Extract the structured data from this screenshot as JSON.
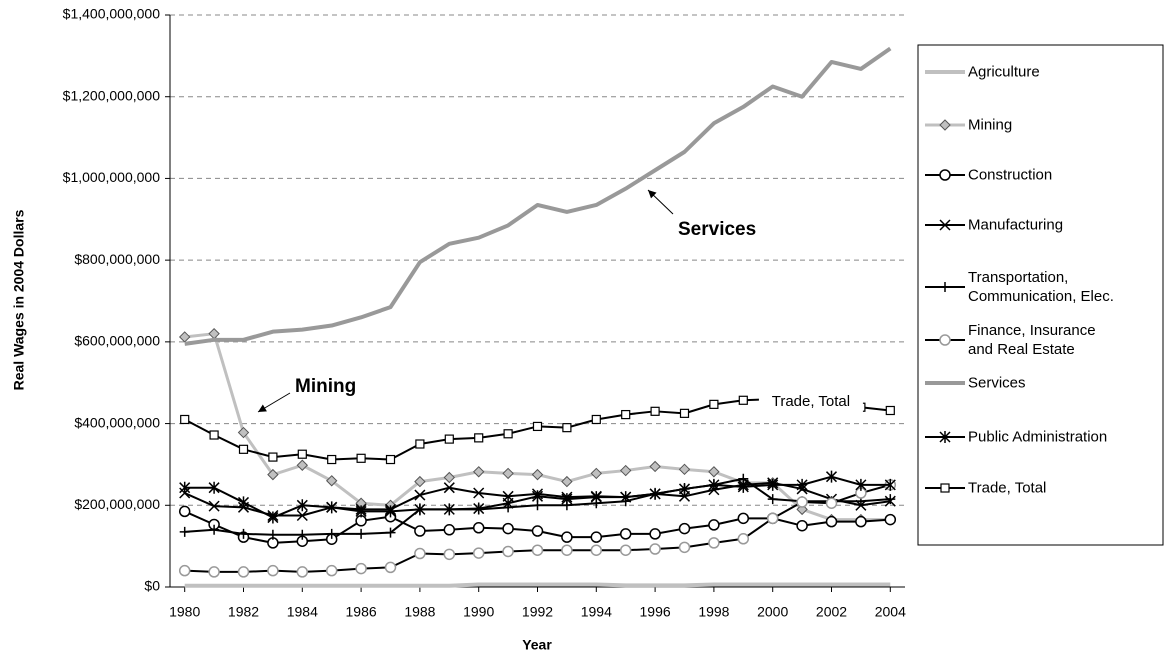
{
  "chart_data": {
    "type": "line",
    "y_label": "Real Wages in 2004 Dollars",
    "x_label": "Year",
    "x": [
      1980,
      1981,
      1982,
      1983,
      1984,
      1985,
      1986,
      1987,
      1988,
      1989,
      1990,
      1991,
      1992,
      1993,
      1994,
      1995,
      1996,
      1997,
      1998,
      1999,
      2000,
      2001,
      2002,
      2003,
      2004
    ],
    "xlim": [
      1979.5,
      2004.5
    ],
    "xticks": [
      1980,
      1982,
      1984,
      1986,
      1988,
      1990,
      1992,
      1994,
      1996,
      1998,
      2000,
      2002,
      2004
    ],
    "ylim": [
      0,
      1400000000
    ],
    "yticks": [
      {
        "value": 0,
        "label": "$0"
      },
      {
        "value": 200000000,
        "label": "$200,000,000"
      },
      {
        "value": 400000000,
        "label": "$400,000,000"
      },
      {
        "value": 600000000,
        "label": "$600,000,000"
      },
      {
        "value": 800000000,
        "label": "$800,000,000"
      },
      {
        "value": 1000000000,
        "label": "$1,000,000,000"
      },
      {
        "value": 1200000000,
        "label": "$1,200,000,000"
      },
      {
        "value": 1400000000,
        "label": "$1,400,000,000"
      }
    ],
    "grid": true,
    "legend": "right",
    "annotations": [
      "Mining",
      "Services"
    ],
    "series": [
      {
        "name": "Agriculture",
        "color": "#c0c0c0",
        "line_width": 4,
        "marker": "none",
        "values": [
          3000000,
          3000000,
          3000000,
          3000000,
          3000000,
          3000000,
          3000000,
          3000000,
          3000000,
          3000000,
          6000000,
          6000000,
          6000000,
          6000000,
          6000000,
          4000000,
          4000000,
          4000000,
          6000000,
          6000000,
          6000000,
          6000000,
          6000000,
          6000000,
          6000000
        ]
      },
      {
        "name": "Mining",
        "color": "#c0c0c0",
        "line_width": 3,
        "marker": "diamond",
        "values": [
          612000000,
          620000000,
          378000000,
          275000000,
          298000000,
          260000000,
          205000000,
          200000000,
          258000000,
          268000000,
          282000000,
          278000000,
          275000000,
          258000000,
          278000000,
          285000000,
          295000000,
          288000000,
          282000000,
          255000000,
          255000000,
          190000000,
          165000000,
          165000000,
          165000000
        ]
      },
      {
        "name": "Construction",
        "color": "#000000",
        "line_width": 2,
        "marker": "circle",
        "values": [
          185000000,
          153000000,
          122000000,
          108000000,
          112000000,
          117000000,
          162000000,
          172000000,
          137000000,
          140000000,
          145000000,
          143000000,
          137000000,
          122000000,
          122000000,
          130000000,
          130000000,
          143000000,
          152000000,
          168000000,
          168000000,
          150000000,
          160000000,
          160000000,
          165000000
        ]
      },
      {
        "name": "Manufacturing",
        "color": "#000000",
        "line_width": 2,
        "marker": "x",
        "values": [
          230000000,
          198000000,
          195000000,
          175000000,
          175000000,
          195000000,
          190000000,
          190000000,
          225000000,
          243000000,
          230000000,
          222000000,
          228000000,
          220000000,
          222000000,
          220000000,
          228000000,
          222000000,
          238000000,
          250000000,
          255000000,
          240000000,
          215000000,
          200000000,
          210000000
        ]
      },
      {
        "name": "Transportation, Communication, Elec.",
        "color": "#000000",
        "line_width": 2,
        "marker": "plus",
        "values": [
          135000000,
          140000000,
          130000000,
          128000000,
          128000000,
          130000000,
          130000000,
          133000000,
          190000000,
          190000000,
          190000000,
          195000000,
          200000000,
          200000000,
          205000000,
          210000000,
          228000000,
          240000000,
          250000000,
          265000000,
          215000000,
          210000000,
          210000000,
          210000000,
          215000000
        ]
      },
      {
        "name": "Finance, Insurance and Real Estate",
        "color": "#000000",
        "line_width": 2,
        "marker": "circle-gray",
        "values": [
          40000000,
          37000000,
          37000000,
          40000000,
          37000000,
          40000000,
          45000000,
          48000000,
          82000000,
          80000000,
          83000000,
          87000000,
          90000000,
          90000000,
          90000000,
          90000000,
          93000000,
          97000000,
          108000000,
          118000000,
          168000000,
          208000000,
          205000000,
          230000000,
          250000000
        ]
      },
      {
        "name": "Services",
        "color": "#999999",
        "line_width": 4,
        "marker": "none",
        "values": [
          595000000,
          605000000,
          605000000,
          625000000,
          630000000,
          640000000,
          660000000,
          685000000,
          795000000,
          840000000,
          855000000,
          885000000,
          935000000,
          918000000,
          935000000,
          975000000,
          1020000000,
          1065000000,
          1135000000,
          1175000000,
          1225000000,
          1200000000,
          1285000000,
          1268000000,
          1318000000
        ]
      },
      {
        "name": "Public Administration",
        "color": "#000000",
        "line_width": 2,
        "marker": "star",
        "values": [
          243000000,
          243000000,
          207000000,
          170000000,
          200000000,
          195000000,
          185000000,
          185000000,
          190000000,
          190000000,
          192000000,
          205000000,
          222000000,
          215000000,
          220000000,
          220000000,
          228000000,
          240000000,
          250000000,
          245000000,
          250000000,
          250000000,
          270000000,
          250000000,
          250000000
        ]
      },
      {
        "name": "Trade, Total",
        "color": "#000000",
        "line_width": 2,
        "marker": "square",
        "values": [
          410000000,
          372000000,
          337000000,
          318000000,
          325000000,
          312000000,
          315000000,
          312000000,
          350000000,
          362000000,
          365000000,
          375000000,
          393000000,
          390000000,
          410000000,
          422000000,
          430000000,
          425000000,
          447000000,
          457000000,
          460000000,
          455000000,
          450000000,
          440000000,
          432000000
        ]
      }
    ]
  }
}
